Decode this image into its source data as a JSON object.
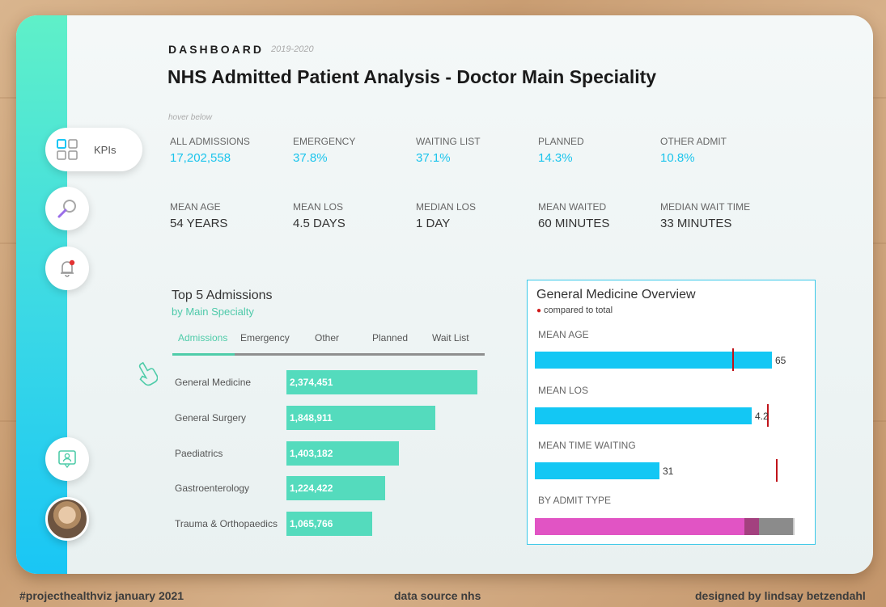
{
  "header": {
    "section": "DASHBOARD",
    "period": "2019-2020",
    "title": "NHS Admitted Patient Analysis - Doctor Main Speciality",
    "hint": "hover below"
  },
  "nav": {
    "kpi_label": "KPIs"
  },
  "kpis_row1": [
    {
      "label": "ALL ADMISSIONS",
      "value": "17,202,558"
    },
    {
      "label": "EMERGENCY",
      "value": "37.8%"
    },
    {
      "label": "WAITING LIST",
      "value": "37.1%"
    },
    {
      "label": "PLANNED",
      "value": "14.3%"
    },
    {
      "label": "OTHER ADMIT",
      "value": "10.8%"
    }
  ],
  "kpis_row2": [
    {
      "label": "MEAN AGE",
      "value": "54 YEARS"
    },
    {
      "label": "MEAN LOS",
      "value": "4.5 DAYS"
    },
    {
      "label": "MEDIAN LOS",
      "value": "1 DAY"
    },
    {
      "label": "MEAN WAITED",
      "value": "60 MINUTES"
    },
    {
      "label": "MEDIAN WAIT TIME",
      "value": "33 MINUTES"
    }
  ],
  "top5": {
    "title": "Top 5 Admissions",
    "subtitle": "by Main Specialty",
    "tabs": [
      "Admissions",
      "Emergency",
      "Other",
      "Planned",
      "Wait List"
    ],
    "active_tab": "Admissions",
    "rows": [
      {
        "name": "General Medicine",
        "value": 2374451,
        "display": "2,374,451"
      },
      {
        "name": "General Surgery",
        "value": 1848911,
        "display": "1,848,911"
      },
      {
        "name": "Paediatrics",
        "value": 1403182,
        "display": "1,403,182"
      },
      {
        "name": "Gastroenterology",
        "value": 1224422,
        "display": "1,224,422"
      },
      {
        "name": "Trauma & Orthopaedics",
        "value": 1065766,
        "display": "1,065,766"
      }
    ]
  },
  "overview": {
    "title": "General Medicine Overview",
    "subtitle": "compared to total",
    "metrics": [
      {
        "label": "MEAN AGE",
        "value": 65,
        "display": "65",
        "total": 54,
        "max": 66
      },
      {
        "label": "MEAN LOS",
        "value": 4.2,
        "display": "4.2",
        "total": 4.5,
        "max": 4.5
      },
      {
        "label": "MEAN TIME WAITING",
        "value": 31,
        "display": "31",
        "total": 60,
        "max": 60
      }
    ],
    "admit_label": "BY ADMIT TYPE",
    "admit_shares": [
      0.81,
      0.055,
      0.13,
      0.005
    ],
    "admit_colors": [
      "#e154c4",
      "#a3417f",
      "#8b8b8b",
      "#c8c8c8"
    ],
    "bar_color": "#13c7f4",
    "ref_color": "#c0141a"
  },
  "footer": {
    "left": "#projecthealthviz january 2021",
    "center": "data source nhs",
    "right": "designed by lindsay betzendahl"
  },
  "colors": {
    "accent": "#1bc4ec",
    "teal": "#54dbbd"
  }
}
